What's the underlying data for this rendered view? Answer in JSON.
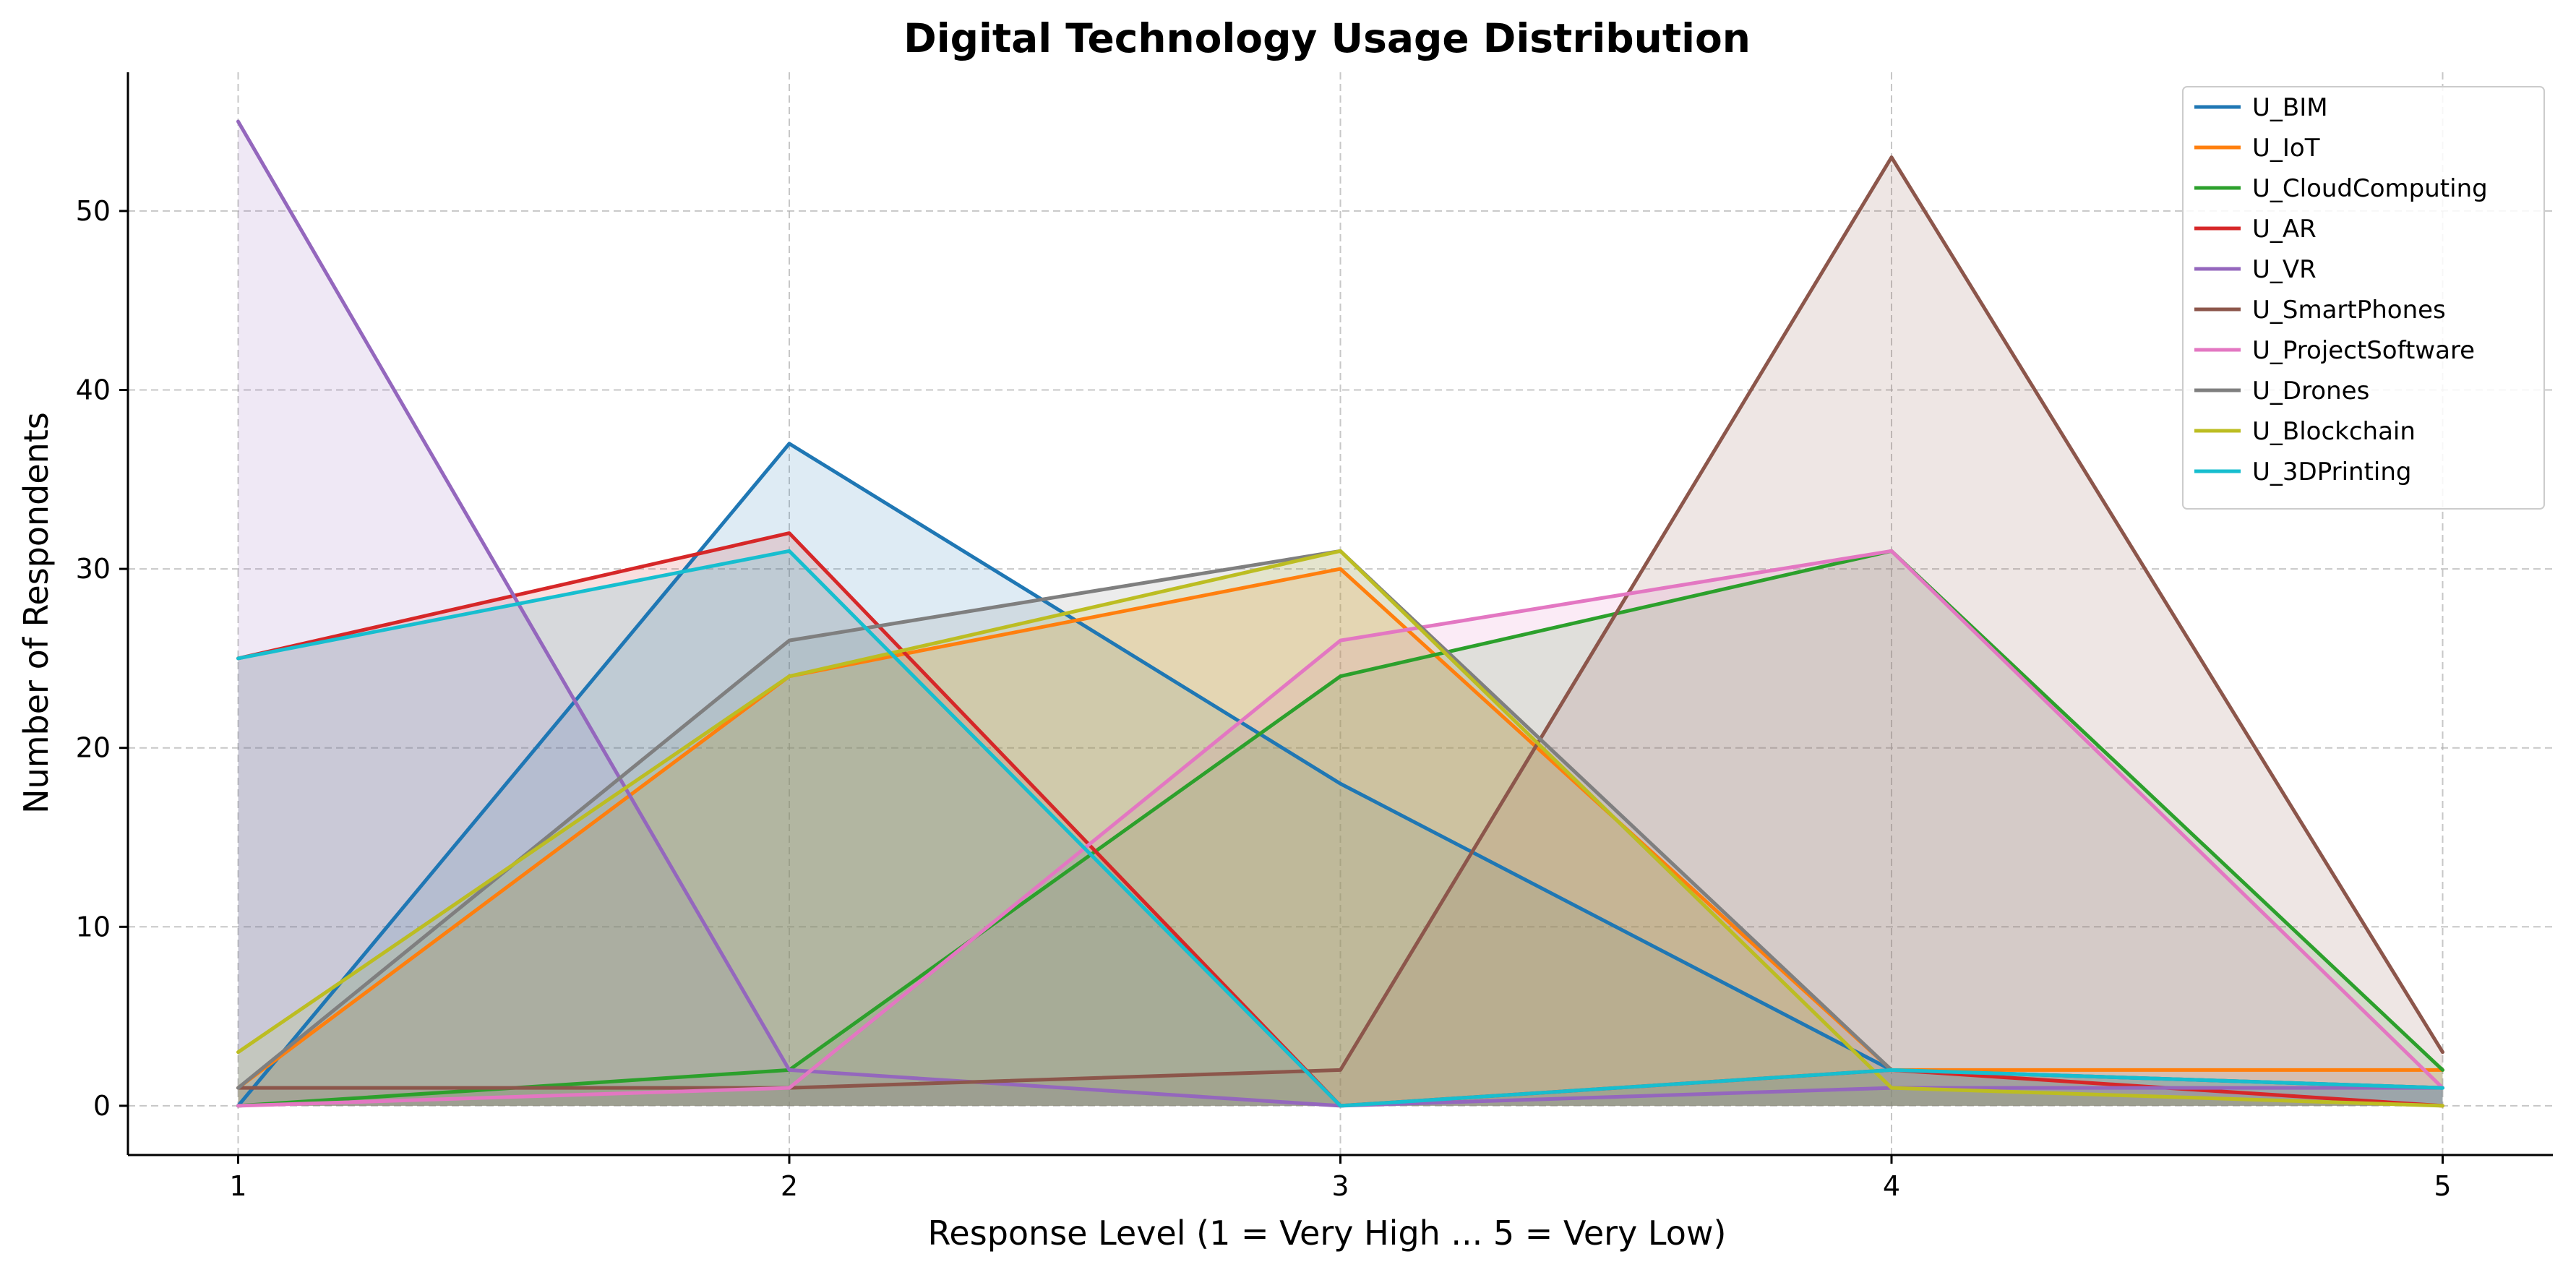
{
  "chart_data": {
    "type": "area",
    "title": "Digital Technology Usage Distribution",
    "xlabel": "Response Level (1 = Very High ... 5 = Very Low)",
    "ylabel": "Number of Respondents",
    "x": [
      1,
      2,
      3,
      4,
      5
    ],
    "x_ticks": [
      "1",
      "2",
      "3",
      "4",
      "5"
    ],
    "y_ticks": [
      "0",
      "10",
      "20",
      "30",
      "40",
      "50"
    ],
    "xlim": [
      0.8,
      5.2
    ],
    "ylim": [
      -2.75,
      57.75
    ],
    "grid": true,
    "legend_position": "top-right",
    "series": [
      {
        "name": "U_BIM",
        "color": "#1f77b4",
        "values": [
          0,
          37,
          18,
          2,
          1
        ]
      },
      {
        "name": "U_IoT",
        "color": "#ff7f0e",
        "values": [
          1,
          24,
          30,
          2,
          2
        ]
      },
      {
        "name": "U_CloudComputing",
        "color": "#2ca02c",
        "values": [
          0,
          2,
          24,
          31,
          2
        ]
      },
      {
        "name": "U_AR",
        "color": "#d62728",
        "values": [
          25,
          32,
          0,
          2,
          0
        ]
      },
      {
        "name": "U_VR",
        "color": "#9467bd",
        "values": [
          55,
          2,
          0,
          1,
          1
        ]
      },
      {
        "name": "U_SmartPhones",
        "color": "#8c564b",
        "values": [
          1,
          1,
          2,
          53,
          3
        ]
      },
      {
        "name": "U_ProjectSoftware",
        "color": "#e377c2",
        "values": [
          0,
          1,
          26,
          31,
          1
        ]
      },
      {
        "name": "U_Drones",
        "color": "#7f7f7f",
        "values": [
          1,
          26,
          31,
          2,
          1
        ]
      },
      {
        "name": "U_Blockchain",
        "color": "#bcbd22",
        "values": [
          3,
          24,
          31,
          1,
          0
        ]
      },
      {
        "name": "U_3DPrinting",
        "color": "#17becf",
        "values": [
          25,
          31,
          0,
          2,
          1
        ]
      }
    ]
  }
}
